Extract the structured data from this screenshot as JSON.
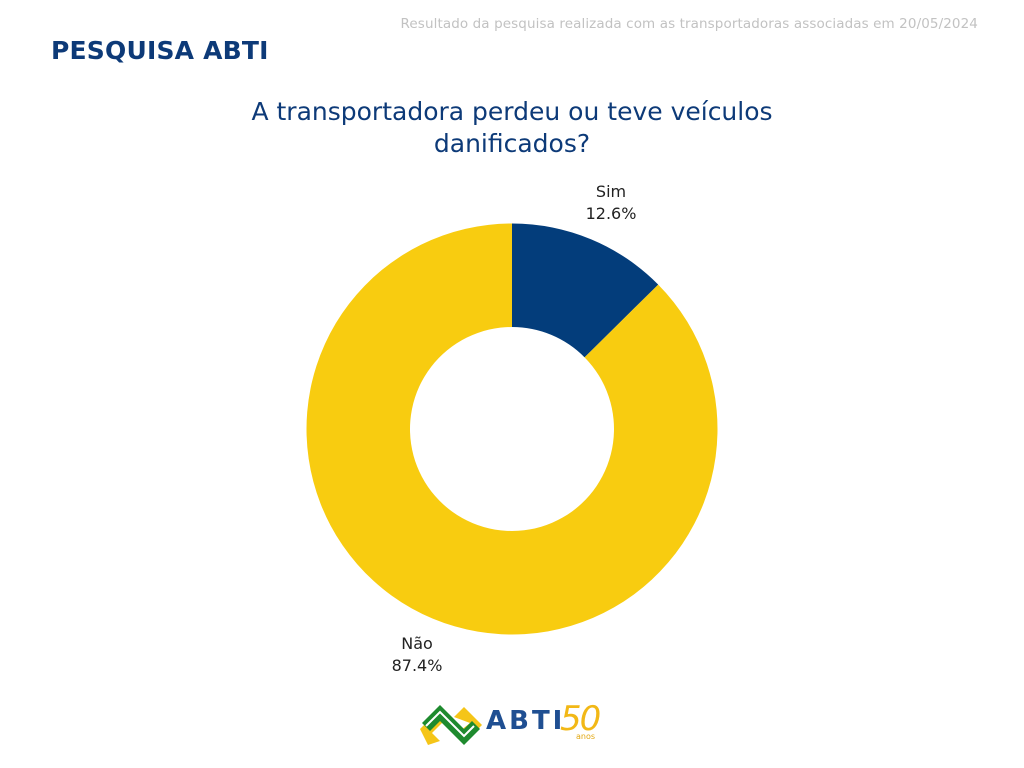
{
  "header": {
    "subtitle": "Resultado da pesquisa realizada com as transportadoras associadas em 20/05/2024",
    "brand_title": "PESQUISA ABTI"
  },
  "chart": {
    "title_line1": "A transportadora perdeu ou teve veículos",
    "title_line2": "danificados?"
  },
  "chart_data": {
    "type": "pie",
    "subtype": "donut",
    "title": "A transportadora perdeu ou teve veículos danificados?",
    "categories": [
      "Sim",
      "Não"
    ],
    "values": [
      12.6,
      87.4
    ],
    "unit": "%",
    "colors": [
      "#033d7b",
      "#f8cc10"
    ],
    "labels": [
      {
        "name": "Sim",
        "value_text": "12.6%"
      },
      {
        "name": "Não",
        "value_text": "87.4%"
      }
    ],
    "start_angle": "12 o'clock, clockwise",
    "legend": "none (labels outside slices)"
  },
  "colors": {
    "brand_blue": "#0d3a78",
    "sim": "#033d7b",
    "nao": "#f8cc10",
    "subtitle_gray": "#c2c2c2"
  },
  "logo": {
    "text": "ABTI",
    "number": "50",
    "suffix": "anos",
    "icon": "abti-logo-icon"
  }
}
